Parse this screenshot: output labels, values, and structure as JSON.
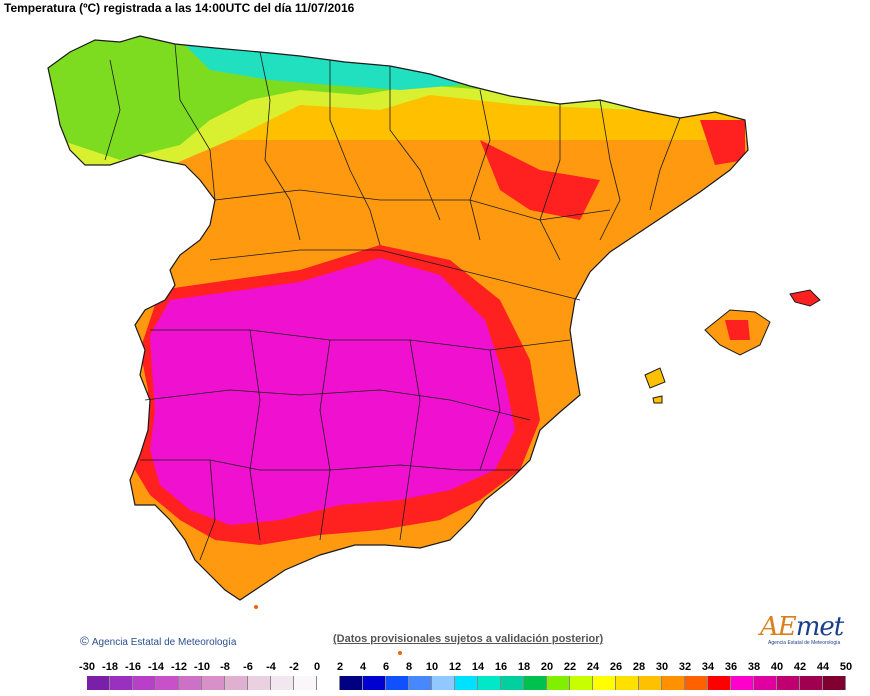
{
  "title": "Temperatura (ºC) registrada a las 14:00UTC del día 11/07/2016",
  "credit": "Agencia Estatal de Meteorología",
  "disclaimer": "(Datos provisionales sujetos a validación posterior)",
  "logo": {
    "main_a": "AE",
    "main_b": "met",
    "sub": "Agencia Estatal de Meteorología"
  },
  "scale": {
    "labels": [
      "-30",
      "-18",
      "-16",
      "-14",
      "-12",
      "-10",
      "-8",
      "-6",
      "-4",
      "-2",
      "0",
      "2",
      "4",
      "6",
      "8",
      "10",
      "12",
      "14",
      "16",
      "18",
      "20",
      "22",
      "24",
      "26",
      "28",
      "30",
      "32",
      "34",
      "36",
      "38",
      "40",
      "42",
      "44",
      "50"
    ],
    "colors": [
      "#7a1fa8",
      "#9a30c0",
      "#b840c8",
      "#c850c8",
      "#cc70c8",
      "#d890c8",
      "#e0b0d0",
      "#ead0e0",
      "#f2e6f0",
      "#faf6fa",
      "#ffffff",
      "#000080",
      "#0000d0",
      "#1050ff",
      "#4888ff",
      "#90c8ff",
      "#00e0ff",
      "#00e8c8",
      "#00d0a0",
      "#00c050",
      "#80f000",
      "#c8ff00",
      "#ffff00",
      "#ffe000",
      "#ffc000",
      "#ff9000",
      "#ff6000",
      "#ff0000",
      "#ff00cc",
      "#e000a0",
      "#c00070",
      "#a00050",
      "#800030"
    ]
  },
  "colors": {
    "green": "#7ddc20",
    "cyan": "#20e0c0",
    "yellow": "#d8f030",
    "orange": "#ff9a10",
    "red": "#ff2020",
    "magenta": "#f010d0",
    "border": "#1a1a1a"
  }
}
